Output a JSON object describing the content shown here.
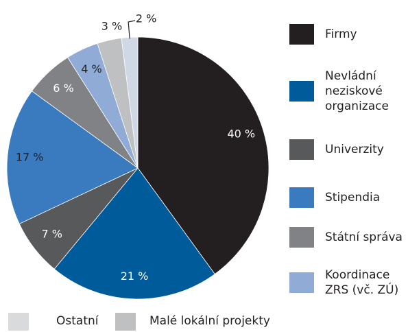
{
  "chart_data": {
    "type": "pie",
    "series": [
      {
        "name": "Firmy",
        "color": "#231f20",
        "values": [
          40
        ],
        "value_labels": [
          "40 %"
        ]
      },
      {
        "name": "Nevládní neziskové organizace",
        "color": "#005b9a",
        "values": [
          21
        ],
        "value_labels": [
          "21 %"
        ]
      },
      {
        "name": "Univerzity",
        "color": "#58595b",
        "values": [
          7
        ],
        "value_labels": [
          "7 %"
        ]
      },
      {
        "name": "Stipendia",
        "color": "#3a7bbf",
        "values": [
          17
        ],
        "value_labels": [
          "17 %"
        ]
      },
      {
        "name": "Státní správa",
        "color": "#808285",
        "values": [
          6
        ],
        "value_labels": [
          "6 %"
        ]
      },
      {
        "name": "Koordinace ZRS (vč. ZÚ)",
        "color": "#8fabd6",
        "values": [
          4
        ],
        "value_labels": [
          "4 %"
        ]
      },
      {
        "name": "Malé lokální projekty",
        "color": "#bfc0c2",
        "values": [
          3
        ],
        "value_labels": [
          "3 %"
        ]
      },
      {
        "name": "Ostatní",
        "color": "#d0d8e6",
        "values": [
          2
        ],
        "value_labels": [
          "2 %"
        ]
      }
    ]
  }
}
